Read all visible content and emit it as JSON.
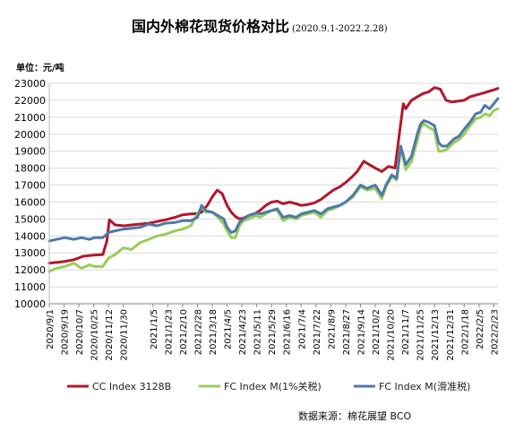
{
  "chart_data": {
    "type": "line",
    "title": "国内外棉花现货价格对比",
    "subtitle": "(2020.9.1-2022.2.28)",
    "unit_label": "单位：元/吨",
    "source": "数据来源：棉花展望 BCO",
    "ylim": [
      10000,
      23000
    ],
    "yticks": [
      10000,
      11000,
      12000,
      13000,
      14000,
      15000,
      16000,
      17000,
      18000,
      19000,
      20000,
      21000,
      22000,
      23000
    ],
    "x_range": [
      "2020-09-01",
      "2022-02-28"
    ],
    "xticks": [
      "2020/9/1",
      "2020/9/19",
      "2020/10/7",
      "2020/10/25",
      "2020/11/12",
      "2020/11/30",
      "2021/1/5",
      "2021/1/23",
      "2021/2/10",
      "2021/2/28",
      "2021/3/18",
      "2021/4/5",
      "2021/4/23",
      "2021/5/11",
      "2021/5/29",
      "2021/6/16",
      "2021/7/4",
      "2021/7/22",
      "2021/8/9",
      "2021/8/27",
      "2021/9/14",
      "2021/10/2",
      "2021/10/20",
      "2021/11/7",
      "2021/11/25",
      "2021/12/13",
      "2021/12/31",
      "2022/1/18",
      "2022/2/5",
      "2022/2/23"
    ],
    "grid": true,
    "legend_position": "bottom",
    "series": [
      {
        "name": "CC Index 3128B",
        "color": "#B2182B",
        "x": [
          "2020-09-01",
          "2020-09-12",
          "2020-09-20",
          "2020-10-01",
          "2020-10-12",
          "2020-10-20",
          "2020-10-28",
          "2020-11-05",
          "2020-11-10",
          "2020-11-13",
          "2020-11-20",
          "2020-12-01",
          "2020-12-10",
          "2020-12-20",
          "2020-12-31",
          "2021-01-10",
          "2021-01-20",
          "2021-02-01",
          "2021-02-10",
          "2021-02-20",
          "2021-02-28",
          "2021-03-05",
          "2021-03-12",
          "2021-03-18",
          "2021-03-24",
          "2021-03-30",
          "2021-04-05",
          "2021-04-10",
          "2021-04-15",
          "2021-04-20",
          "2021-04-25",
          "2021-05-01",
          "2021-05-10",
          "2021-05-15",
          "2021-05-22",
          "2021-05-29",
          "2021-06-05",
          "2021-06-12",
          "2021-06-20",
          "2021-06-28",
          "2021-07-04",
          "2021-07-12",
          "2021-07-20",
          "2021-07-28",
          "2021-08-05",
          "2021-08-12",
          "2021-08-20",
          "2021-08-27",
          "2021-09-03",
          "2021-09-10",
          "2021-09-18",
          "2021-09-25",
          "2021-10-02",
          "2021-10-10",
          "2021-10-18",
          "2021-10-26",
          "2021-11-01",
          "2021-11-05",
          "2021-11-08",
          "2021-11-15",
          "2021-11-22",
          "2021-11-29",
          "2021-12-06",
          "2021-12-13",
          "2021-12-20",
          "2021-12-27",
          "2022-01-03",
          "2022-01-10",
          "2022-01-18",
          "2022-01-25",
          "2022-02-01",
          "2022-02-08",
          "2022-02-15",
          "2022-02-22",
          "2022-02-28"
        ],
        "values": [
          12400,
          12450,
          12500,
          12600,
          12800,
          12850,
          12880,
          12900,
          13700,
          14950,
          14650,
          14600,
          14650,
          14700,
          14750,
          14850,
          14950,
          15100,
          15250,
          15300,
          15320,
          15400,
          15800,
          16300,
          16700,
          16500,
          15800,
          15400,
          15150,
          15000,
          15050,
          15200,
          15350,
          15500,
          15800,
          16000,
          16050,
          15900,
          16000,
          15900,
          15800,
          15850,
          15950,
          16150,
          16450,
          16700,
          16900,
          17150,
          17450,
          17800,
          18400,
          18200,
          18000,
          17800,
          18100,
          18000,
          20300,
          21800,
          21500,
          22000,
          22200,
          22400,
          22500,
          22750,
          22650,
          22000,
          21900,
          21950,
          22000,
          22200,
          22300,
          22400,
          22500,
          22600,
          22700
        ]
      },
      {
        "name": "FC Index M(1%关税)",
        "color": "#9ACD5A",
        "x": [
          "2020-09-01",
          "2020-09-10",
          "2020-09-20",
          "2020-10-01",
          "2020-10-10",
          "2020-10-20",
          "2020-10-26",
          "2020-11-05",
          "2020-11-12",
          "2020-11-20",
          "2020-11-30",
          "2020-12-10",
          "2020-12-20",
          "2020-12-31",
          "2021-01-10",
          "2021-01-20",
          "2021-02-01",
          "2021-02-10",
          "2021-02-20",
          "2021-02-28",
          "2021-03-05",
          "2021-03-10",
          "2021-03-18",
          "2021-03-25",
          "2021-04-01",
          "2021-04-05",
          "2021-04-10",
          "2021-04-15",
          "2021-04-20",
          "2021-04-25",
          "2021-05-01",
          "2021-05-10",
          "2021-05-15",
          "2021-05-22",
          "2021-05-29",
          "2021-06-05",
          "2021-06-12",
          "2021-06-20",
          "2021-06-28",
          "2021-07-04",
          "2021-07-12",
          "2021-07-20",
          "2021-07-28",
          "2021-08-05",
          "2021-08-12",
          "2021-08-20",
          "2021-08-27",
          "2021-09-05",
          "2021-09-14",
          "2021-09-22",
          "2021-10-02",
          "2021-10-10",
          "2021-10-15",
          "2021-10-22",
          "2021-10-28",
          "2021-11-02",
          "2021-11-08",
          "2021-11-15",
          "2021-11-22",
          "2021-11-26",
          "2021-11-30",
          "2021-12-06",
          "2021-12-13",
          "2021-12-18",
          "2021-12-22",
          "2021-12-28",
          "2022-01-05",
          "2022-01-12",
          "2022-01-18",
          "2022-01-25",
          "2022-02-01",
          "2022-02-07",
          "2022-02-12",
          "2022-02-18",
          "2022-02-23",
          "2022-02-28"
        ],
        "values": [
          11900,
          12100,
          12200,
          12400,
          12100,
          12300,
          12200,
          12200,
          12700,
          12900,
          13300,
          13200,
          13600,
          13800,
          14000,
          14100,
          14300,
          14400,
          14600,
          15300,
          15700,
          15400,
          15400,
          15100,
          14700,
          14300,
          13900,
          13900,
          14600,
          14900,
          15000,
          15200,
          15100,
          15300,
          15500,
          15500,
          14900,
          15100,
          15000,
          15200,
          15300,
          15400,
          15100,
          15500,
          15600,
          15800,
          16000,
          16300,
          16900,
          16700,
          16800,
          16200,
          16900,
          17500,
          17300,
          19200,
          17900,
          18400,
          19600,
          20400,
          20600,
          20400,
          20200,
          19000,
          19000,
          19100,
          19500,
          19700,
          20000,
          20500,
          20900,
          21000,
          21200,
          21100,
          21400,
          21500
        ]
      },
      {
        "name": "FC Index M(滑准税)",
        "color": "#4E79A7",
        "x": [
          "2020-09-01",
          "2020-09-10",
          "2020-09-20",
          "2020-10-01",
          "2020-10-10",
          "2020-10-20",
          "2020-10-26",
          "2020-11-05",
          "2020-11-12",
          "2020-11-20",
          "2020-11-30",
          "2020-12-10",
          "2020-12-20",
          "2020-12-31",
          "2021-01-10",
          "2021-01-20",
          "2021-02-01",
          "2021-02-10",
          "2021-02-20",
          "2021-02-28",
          "2021-03-05",
          "2021-03-10",
          "2021-03-18",
          "2021-03-25",
          "2021-04-01",
          "2021-04-05",
          "2021-04-10",
          "2021-04-15",
          "2021-04-20",
          "2021-04-25",
          "2021-05-01",
          "2021-05-10",
          "2021-05-15",
          "2021-05-22",
          "2021-05-29",
          "2021-06-05",
          "2021-06-12",
          "2021-06-20",
          "2021-06-28",
          "2021-07-04",
          "2021-07-12",
          "2021-07-20",
          "2021-07-28",
          "2021-08-05",
          "2021-08-12",
          "2021-08-20",
          "2021-08-27",
          "2021-09-05",
          "2021-09-14",
          "2021-09-22",
          "2021-10-02",
          "2021-10-10",
          "2021-10-15",
          "2021-10-22",
          "2021-10-28",
          "2021-11-02",
          "2021-11-08",
          "2021-11-15",
          "2021-11-22",
          "2021-11-26",
          "2021-11-30",
          "2021-12-06",
          "2021-12-13",
          "2021-12-18",
          "2021-12-22",
          "2021-12-28",
          "2022-01-05",
          "2022-01-12",
          "2022-01-18",
          "2022-01-25",
          "2022-02-01",
          "2022-02-07",
          "2022-02-12",
          "2022-02-18",
          "2022-02-23",
          "2022-02-28"
        ],
        "values": [
          13700,
          13800,
          13900,
          13800,
          13900,
          13800,
          13900,
          13900,
          14200,
          14300,
          14400,
          14450,
          14500,
          14700,
          14600,
          14750,
          14800,
          14900,
          14900,
          15100,
          15800,
          15500,
          15400,
          15200,
          15000,
          14500,
          14200,
          14300,
          14800,
          15000,
          15200,
          15350,
          15300,
          15400,
          15500,
          15600,
          15100,
          15200,
          15100,
          15300,
          15400,
          15500,
          15300,
          15600,
          15700,
          15800,
          16000,
          16400,
          17000,
          16800,
          17000,
          16400,
          17000,
          17600,
          17400,
          19300,
          18200,
          18700,
          20000,
          20600,
          20800,
          20700,
          20500,
          19500,
          19300,
          19300,
          19700,
          19900,
          20300,
          20700,
          21200,
          21300,
          21700,
          21500,
          21800,
          22100
        ]
      }
    ]
  }
}
